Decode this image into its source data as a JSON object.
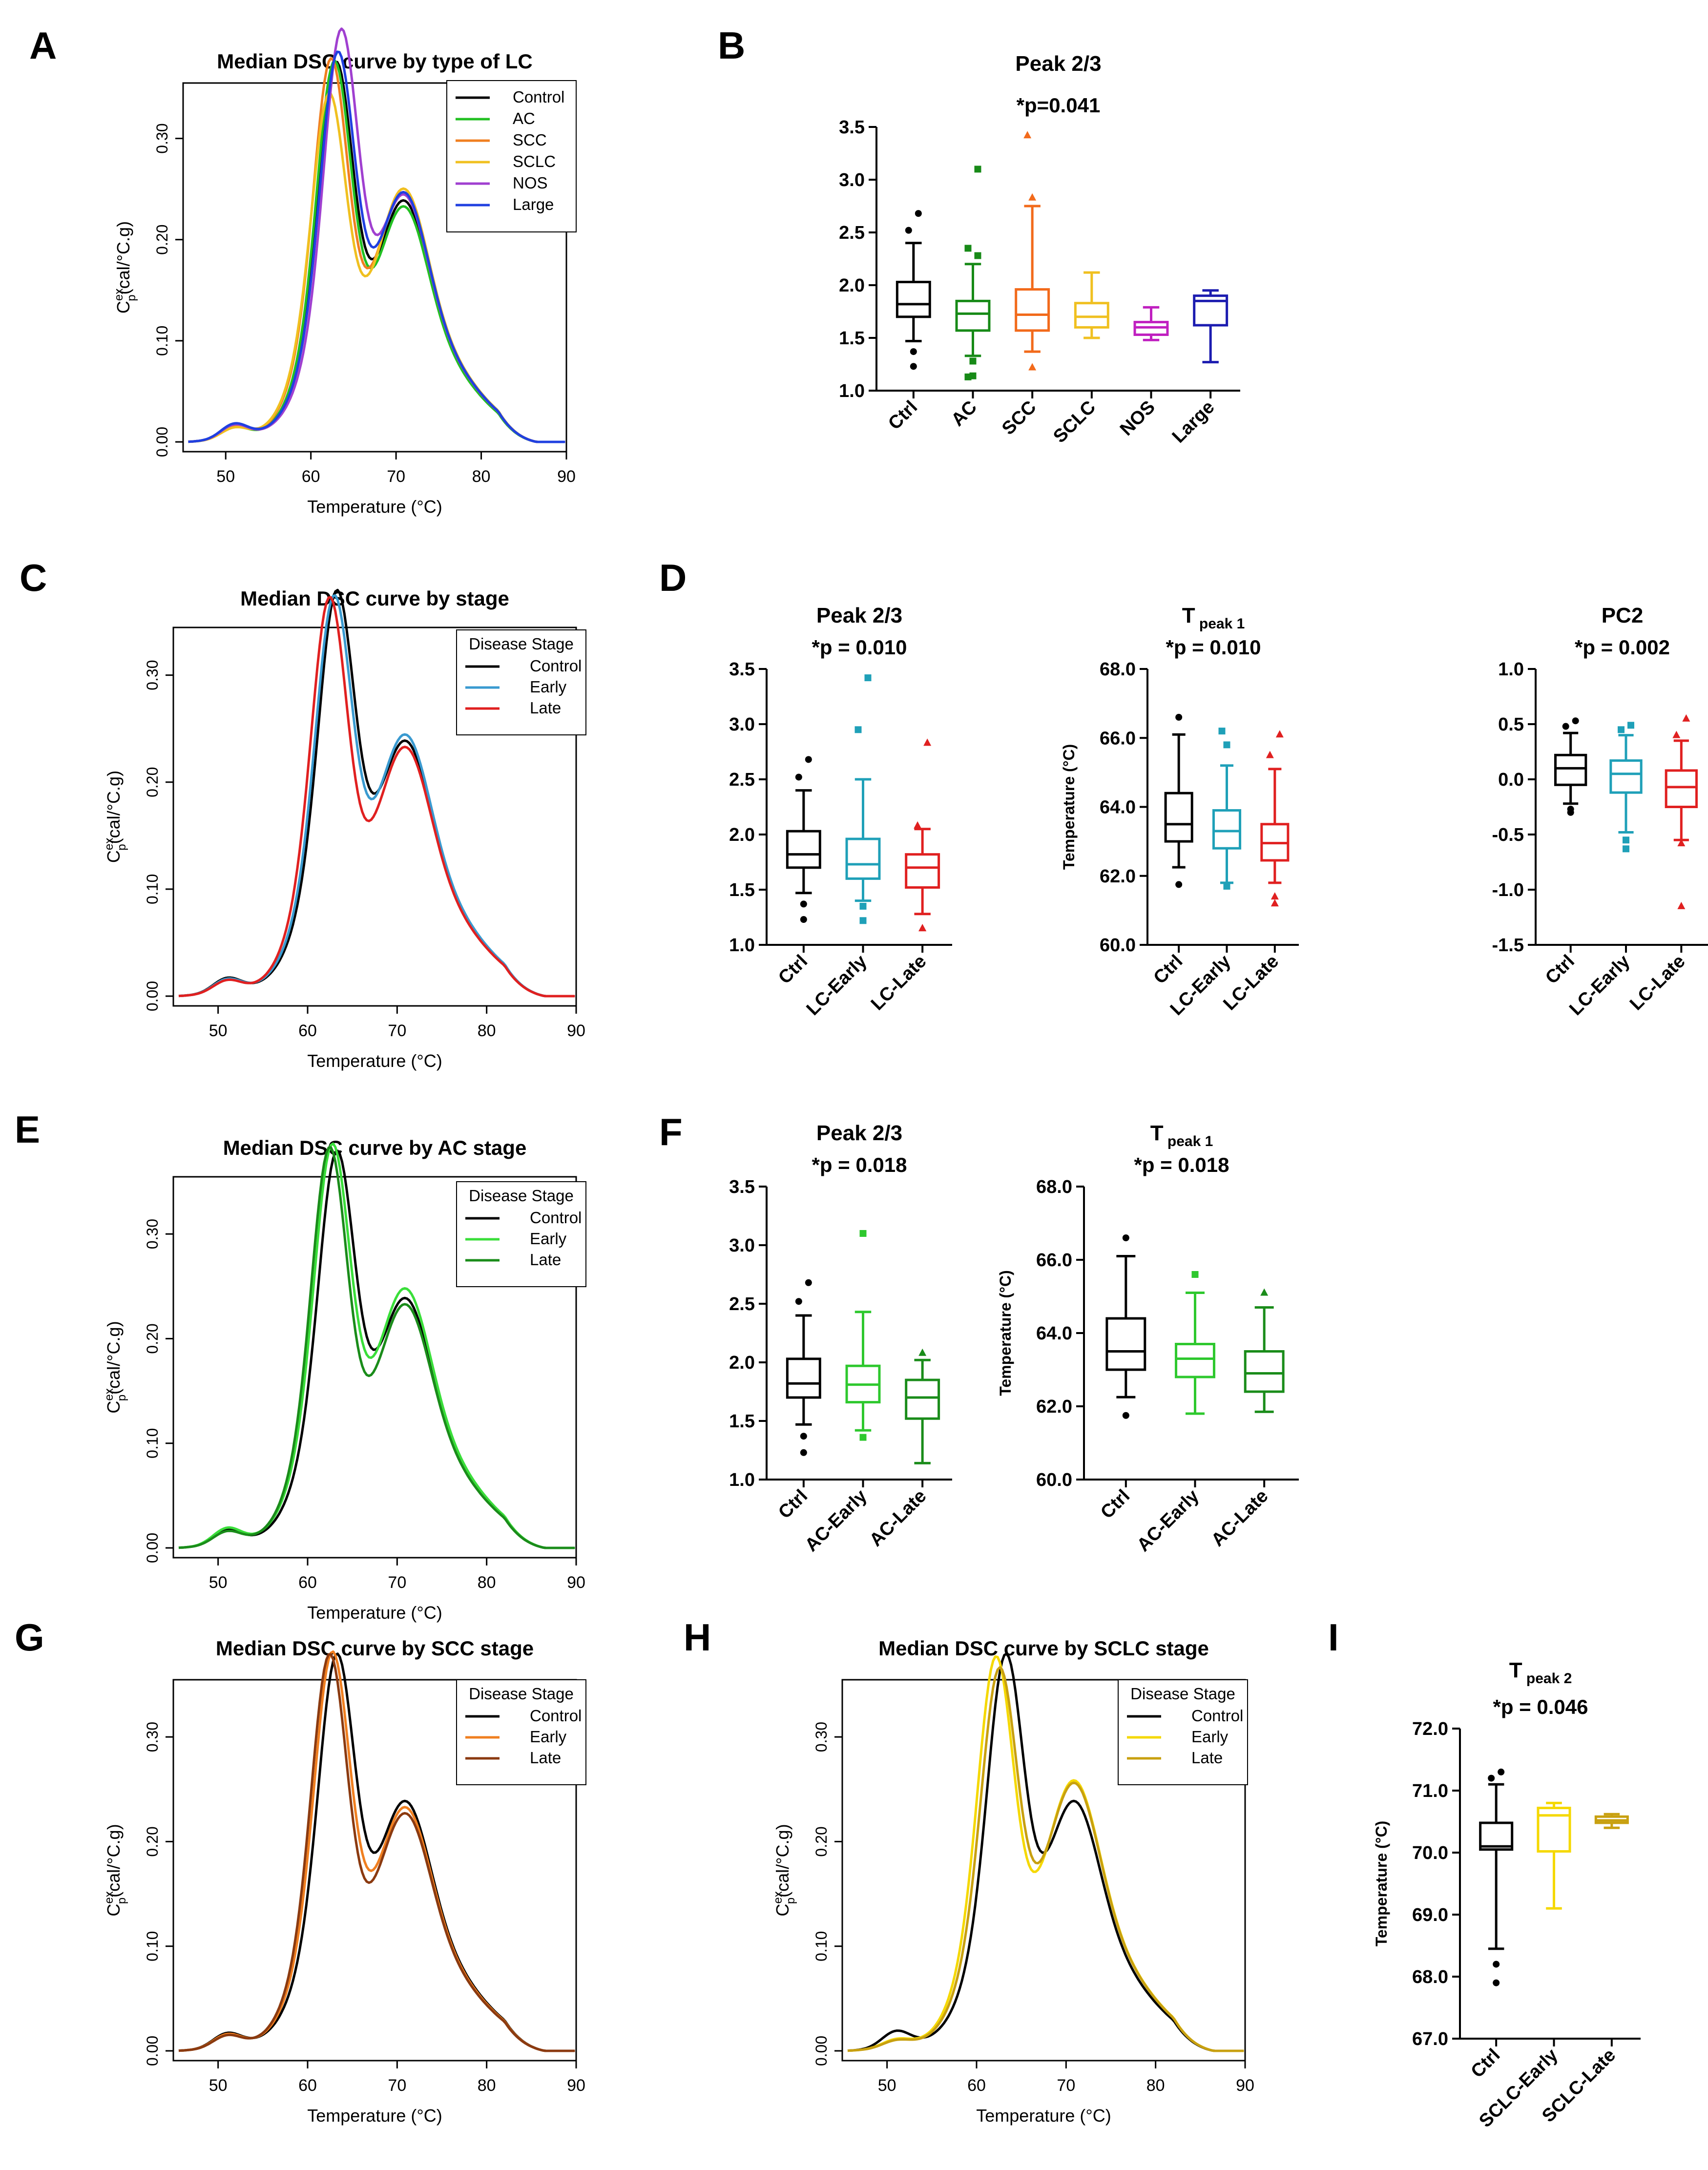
{
  "figure_title": "",
  "chart_data": [
    {
      "id": "A",
      "type": "line",
      "panel_label": "A",
      "title": "Median DSC curve by type of LC",
      "xlabel": "Temperature (°C)",
      "ylabel_main": "C",
      "ylabel_sup": "ex",
      "ylabel_sub": "p",
      "ylabel_tail": "(cal/°C.g)",
      "xlim": [
        45,
        90
      ],
      "ylim": [
        0,
        0.35
      ],
      "xticks": [
        50,
        60,
        70,
        80,
        90
      ],
      "yticks": [
        0.0,
        0.1,
        0.2,
        0.3
      ],
      "ytick_labels": [
        "0.00",
        "0.10",
        "0.20",
        "0.30"
      ],
      "legend_title": "",
      "series": [
        {
          "name": "Control",
          "color": "#000000",
          "profile": {
            "p1": 0.014,
            "p2": 0.325,
            "t2": 63.0,
            "p3": 0.205
          }
        },
        {
          "name": "AC",
          "color": "#22c022",
          "profile": {
            "p1": 0.012,
            "p2": 0.33,
            "t2": 62.8,
            "p3": 0.2
          }
        },
        {
          "name": "SCC",
          "color": "#f07f20",
          "profile": {
            "p1": 0.013,
            "p2": 0.332,
            "t2": 62.4,
            "p3": 0.215
          }
        },
        {
          "name": "SCLC",
          "color": "#f0c020",
          "profile": {
            "p1": 0.011,
            "p2": 0.3,
            "t2": 62.2,
            "p3": 0.215
          }
        },
        {
          "name": "NOS",
          "color": "#a040d0",
          "profile": {
            "p1": 0.014,
            "p2": 0.348,
            "t2": 63.6,
            "p3": 0.21
          }
        },
        {
          "name": "Large",
          "color": "#2040e0",
          "profile": {
            "p1": 0.015,
            "p2": 0.33,
            "t2": 63.2,
            "p3": 0.212
          }
        }
      ]
    },
    {
      "id": "B",
      "type": "box",
      "panel_label": "B",
      "title": "Peak 2/3",
      "annotation": "*p=0.041",
      "ylabel": "",
      "ylim": [
        1.0,
        3.5
      ],
      "yticks": [
        1.0,
        1.5,
        2.0,
        2.5,
        3.0,
        3.5
      ],
      "ytick_labels": [
        "1.0",
        "1.5",
        "2.0",
        "2.5",
        "3.0",
        "3.5"
      ],
      "categories": [
        "Ctrl",
        "AC",
        "SCC",
        "SCLC",
        "NOS",
        "Large"
      ],
      "groups": [
        {
          "name": "Ctrl",
          "color": "#000000",
          "marker": "circle",
          "whislo": 1.47,
          "q1": 1.7,
          "med": 1.82,
          "q3": 2.03,
          "whishi": 2.4,
          "outliers": [
            1.37,
            1.23,
            2.52,
            2.68
          ]
        },
        {
          "name": "AC",
          "color": "#178a17",
          "marker": "square",
          "whislo": 1.33,
          "q1": 1.57,
          "med": 1.73,
          "q3": 1.85,
          "whishi": 2.2,
          "outliers": [
            1.28,
            1.14,
            1.13,
            2.28,
            2.35,
            3.1
          ]
        },
        {
          "name": "SCC",
          "color": "#f26a1b",
          "marker": "triangle",
          "whislo": 1.37,
          "q1": 1.57,
          "med": 1.72,
          "q3": 1.96,
          "whishi": 2.75,
          "outliers": [
            1.22,
            2.83,
            3.42
          ]
        },
        {
          "name": "SCLC",
          "color": "#f0c020",
          "marker": "none",
          "whislo": 1.5,
          "q1": 1.6,
          "med": 1.7,
          "q3": 1.83,
          "whishi": 2.12,
          "outliers": []
        },
        {
          "name": "NOS",
          "color": "#c020c0",
          "marker": "none",
          "whislo": 1.48,
          "q1": 1.53,
          "med": 1.6,
          "q3": 1.65,
          "whishi": 1.79,
          "outliers": []
        },
        {
          "name": "Large",
          "color": "#1c1cb0",
          "marker": "none",
          "whislo": 1.27,
          "q1": 1.62,
          "med": 1.85,
          "q3": 1.9,
          "whishi": 1.95,
          "outliers": []
        }
      ]
    },
    {
      "id": "C",
      "type": "line",
      "panel_label": "C",
      "title": "Median DSC curve by stage",
      "xlabel": "Temperature (°C)",
      "ylabel_main": "C",
      "ylabel_sup": "ex",
      "ylabel_sub": "p",
      "ylabel_tail": "(cal/°C.g)",
      "xlim": [
        45,
        90
      ],
      "ylim": [
        0,
        0.34
      ],
      "xticks": [
        50,
        60,
        70,
        80,
        90
      ],
      "yticks": [
        0.0,
        0.1,
        0.2,
        0.3
      ],
      "ytick_labels": [
        "0.00",
        "0.10",
        "0.20",
        "0.30"
      ],
      "legend_title": "Disease Stage",
      "series": [
        {
          "name": "Control",
          "color": "#000000",
          "profile": {
            "p1": 0.014,
            "p2": 0.325,
            "t2": 63.3,
            "p3": 0.205
          }
        },
        {
          "name": "Early",
          "color": "#3a9ad0",
          "profile": {
            "p1": 0.013,
            "p2": 0.322,
            "t2": 63.0,
            "p3": 0.21
          }
        },
        {
          "name": "Late",
          "color": "#e02020",
          "profile": {
            "p1": 0.012,
            "p2": 0.33,
            "t2": 62.5,
            "p3": 0.2
          }
        }
      ]
    },
    {
      "id": "D1",
      "type": "box",
      "panel_label": "D",
      "title": "Peak 2/3",
      "annotation": "*p = 0.010",
      "ylabel": "",
      "ylim": [
        1.0,
        3.5
      ],
      "yticks": [
        1.0,
        1.5,
        2.0,
        2.5,
        3.0,
        3.5
      ],
      "ytick_labels": [
        "1.0",
        "1.5",
        "2.0",
        "2.5",
        "3.0",
        "3.5"
      ],
      "categories": [
        "Ctrl",
        "LC-Early",
        "LC-Late"
      ],
      "groups": [
        {
          "name": "Ctrl",
          "color": "#000000",
          "marker": "circle",
          "whislo": 1.47,
          "q1": 1.7,
          "med": 1.82,
          "q3": 2.03,
          "whishi": 2.4,
          "outliers": [
            1.37,
            1.23,
            2.52,
            2.68
          ]
        },
        {
          "name": "LC-Early",
          "color": "#1fa0b8",
          "marker": "square",
          "whislo": 1.4,
          "q1": 1.6,
          "med": 1.73,
          "q3": 1.96,
          "whishi": 2.5,
          "outliers": [
            1.35,
            1.22,
            2.95,
            3.42
          ]
        },
        {
          "name": "LC-Late",
          "color": "#e02020",
          "marker": "triangle",
          "whislo": 1.28,
          "q1": 1.52,
          "med": 1.7,
          "q3": 1.82,
          "whishi": 2.05,
          "outliers": [
            1.15,
            1.15,
            2.08,
            2.83
          ]
        }
      ]
    },
    {
      "id": "D2",
      "type": "box",
      "panel_label": "",
      "title": "T",
      "title_sub": "peak 1",
      "annotation": "*p = 0.010",
      "ylabel": "Temperature (°C)",
      "ylim": [
        60.0,
        68.0
      ],
      "yticks": [
        60.0,
        62.0,
        64.0,
        66.0,
        68.0
      ],
      "ytick_labels": [
        "60.0",
        "62.0",
        "64.0",
        "66.0",
        "68.0"
      ],
      "categories": [
        "Ctrl",
        "LC-Early",
        "LC-Late"
      ],
      "groups": [
        {
          "name": "Ctrl",
          "color": "#000000",
          "marker": "circle",
          "whislo": 62.25,
          "q1": 63.0,
          "med": 63.5,
          "q3": 64.4,
          "whishi": 66.1,
          "outliers": [
            61.75,
            66.6
          ]
        },
        {
          "name": "LC-Early",
          "color": "#1fa0b8",
          "marker": "square",
          "whislo": 61.8,
          "q1": 62.8,
          "med": 63.3,
          "q3": 63.9,
          "whishi": 65.2,
          "outliers": [
            61.7,
            65.8,
            66.2
          ]
        },
        {
          "name": "LC-Late",
          "color": "#e02020",
          "marker": "triangle",
          "whislo": 61.8,
          "q1": 62.45,
          "med": 62.95,
          "q3": 63.5,
          "whishi": 65.1,
          "outliers": [
            61.4,
            61.2,
            65.5,
            66.1
          ]
        }
      ]
    },
    {
      "id": "D3",
      "type": "box",
      "panel_label": "",
      "title": "PC2",
      "annotation": "*p = 0.002",
      "ylabel": "",
      "ylim": [
        -1.5,
        1.0
      ],
      "yticks": [
        -1.5,
        -1.0,
        -0.5,
        0.0,
        0.5,
        1.0
      ],
      "ytick_labels": [
        "-1.5",
        "-1.0",
        "-0.5",
        "0.0",
        "0.5",
        "1.0"
      ],
      "categories": [
        "Ctrl",
        "LC-Early",
        "LC-Late"
      ],
      "groups": [
        {
          "name": "Ctrl",
          "color": "#000000",
          "marker": "circle",
          "whislo": -0.22,
          "q1": -0.05,
          "med": 0.1,
          "q3": 0.22,
          "whishi": 0.42,
          "outliers": [
            -0.27,
            -0.3,
            0.48,
            0.53
          ]
        },
        {
          "name": "LC-Early",
          "color": "#1fa0b8",
          "marker": "square",
          "whislo": -0.48,
          "q1": -0.12,
          "med": 0.05,
          "q3": 0.17,
          "whishi": 0.4,
          "outliers": [
            -0.55,
            -0.63,
            0.45,
            0.49
          ]
        },
        {
          "name": "LC-Late",
          "color": "#e02020",
          "marker": "triangle",
          "whislo": -0.55,
          "q1": -0.25,
          "med": -0.07,
          "q3": 0.08,
          "whishi": 0.35,
          "outliers": [
            -0.58,
            -1.15,
            0.4,
            0.55
          ]
        }
      ]
    },
    {
      "id": "E",
      "type": "line",
      "panel_label": "E",
      "title": "Median DSC curve by  AC stage",
      "xlabel": "Temperature (°C)",
      "ylabel_main": "C",
      "ylabel_sup": "ex",
      "ylabel_sub": "p",
      "ylabel_tail": "(cal/°C.g)",
      "xlim": [
        45,
        90
      ],
      "ylim": [
        0,
        0.35
      ],
      "xticks": [
        50,
        60,
        70,
        80,
        90
      ],
      "yticks": [
        0.0,
        0.1,
        0.2,
        0.3
      ],
      "ytick_labels": [
        "0.00",
        "0.10",
        "0.20",
        "0.30"
      ],
      "legend_title": "Disease Stage",
      "series": [
        {
          "name": "Control",
          "color": "#000000",
          "profile": {
            "p1": 0.014,
            "p2": 0.325,
            "t2": 63.3,
            "p3": 0.205
          }
        },
        {
          "name": "Early",
          "color": "#3ade3a",
          "profile": {
            "p1": 0.016,
            "p2": 0.335,
            "t2": 62.8,
            "p3": 0.213
          }
        },
        {
          "name": "Late",
          "color": "#1a8c1a",
          "profile": {
            "p1": 0.013,
            "p2": 0.34,
            "t2": 62.5,
            "p3": 0.2
          }
        }
      ]
    },
    {
      "id": "F1",
      "type": "box",
      "panel_label": "F",
      "title": "Peak 2/3",
      "annotation": "*p = 0.018",
      "ylabel": "",
      "ylim": [
        1.0,
        3.5
      ],
      "yticks": [
        1.0,
        1.5,
        2.0,
        2.5,
        3.0,
        3.5
      ],
      "ytick_labels": [
        "1.0",
        "1.5",
        "2.0",
        "2.5",
        "3.0",
        "3.5"
      ],
      "categories": [
        "Ctrl",
        "AC-Early",
        "AC-Late"
      ],
      "groups": [
        {
          "name": "Ctrl",
          "color": "#000000",
          "marker": "circle",
          "whislo": 1.47,
          "q1": 1.7,
          "med": 1.82,
          "q3": 2.03,
          "whishi": 2.4,
          "outliers": [
            1.37,
            1.23,
            2.52,
            2.68
          ]
        },
        {
          "name": "AC-Early",
          "color": "#2ec82e",
          "marker": "square",
          "whislo": 1.42,
          "q1": 1.66,
          "med": 1.81,
          "q3": 1.97,
          "whishi": 2.43,
          "outliers": [
            1.36,
            3.1
          ]
        },
        {
          "name": "AC-Late",
          "color": "#1a8c1a",
          "marker": "triangle",
          "whislo": 1.14,
          "q1": 1.52,
          "med": 1.7,
          "q3": 1.85,
          "whishi": 2.02,
          "outliers": [
            2.08
          ]
        }
      ]
    },
    {
      "id": "F2",
      "type": "box",
      "panel_label": "",
      "title": "T",
      "title_sub": "peak 1",
      "annotation": "*p = 0.018",
      "ylabel": "Temperature (°C)",
      "ylim": [
        60.0,
        68.0
      ],
      "yticks": [
        60.0,
        62.0,
        64.0,
        66.0,
        68.0
      ],
      "ytick_labels": [
        "60.0",
        "62.0",
        "64.0",
        "66.0",
        "68.0"
      ],
      "categories": [
        "Ctrl",
        "AC-Early",
        "AC-Late"
      ],
      "groups": [
        {
          "name": "Ctrl",
          "color": "#000000",
          "marker": "circle",
          "whislo": 62.25,
          "q1": 63.0,
          "med": 63.5,
          "q3": 64.4,
          "whishi": 66.1,
          "outliers": [
            61.75,
            66.6
          ]
        },
        {
          "name": "AC-Early",
          "color": "#2ec82e",
          "marker": "square",
          "whislo": 61.8,
          "q1": 62.8,
          "med": 63.3,
          "q3": 63.7,
          "whishi": 65.1,
          "outliers": [
            65.6
          ]
        },
        {
          "name": "AC-Late",
          "color": "#1a8c1a",
          "marker": "triangle",
          "whislo": 61.85,
          "q1": 62.4,
          "med": 62.9,
          "q3": 63.5,
          "whishi": 64.7,
          "outliers": [
            65.1
          ]
        }
      ]
    },
    {
      "id": "G",
      "type": "line",
      "panel_label": "G",
      "title": "Median DSC curve by  SCC stage",
      "xlabel": "Temperature (°C)",
      "ylabel_main": "C",
      "ylabel_sup": "ex",
      "ylabel_sub": "p",
      "ylabel_tail": "(cal/°C.g)",
      "xlim": [
        45,
        90
      ],
      "ylim": [
        0,
        0.35
      ],
      "xticks": [
        50,
        60,
        70,
        80,
        90
      ],
      "yticks": [
        0.0,
        0.1,
        0.2,
        0.3
      ],
      "ytick_labels": [
        "0.00",
        "0.10",
        "0.20",
        "0.30"
      ],
      "legend_title": "Disease Stage",
      "series": [
        {
          "name": "Control",
          "color": "#000000",
          "profile": {
            "p1": 0.014,
            "p2": 0.325,
            "t2": 63.3,
            "p3": 0.205
          }
        },
        {
          "name": "Early",
          "color": "#f07f20",
          "profile": {
            "p1": 0.013,
            "p2": 0.335,
            "t2": 62.8,
            "p3": 0.2
          }
        },
        {
          "name": "Late",
          "color": "#8b3a10",
          "profile": {
            "p1": 0.012,
            "p2": 0.338,
            "t2": 62.5,
            "p3": 0.195
          }
        }
      ]
    },
    {
      "id": "H",
      "type": "line",
      "panel_label": "H",
      "title": "Median DSC curve by  SCLC stage",
      "xlabel": "Temperature (°C)",
      "ylabel_main": "C",
      "ylabel_sup": "ex",
      "ylabel_sub": "p",
      "ylabel_tail": "(cal/°C.g)",
      "xlim": [
        45,
        90
      ],
      "ylim": [
        0,
        0.35
      ],
      "xticks": [
        50,
        60,
        70,
        80,
        90
      ],
      "yticks": [
        0.0,
        0.1,
        0.2,
        0.3
      ],
      "ytick_labels": [
        "0.00",
        "0.10",
        "0.20",
        "0.30"
      ],
      "legend_title": "Disease Stage",
      "series": [
        {
          "name": "Control",
          "color": "#000000",
          "profile": {
            "p1": 0.016,
            "p2": 0.325,
            "t2": 63.3,
            "p3": 0.205
          }
        },
        {
          "name": "Early",
          "color": "#f5d800",
          "profile": {
            "p1": 0.008,
            "p2": 0.33,
            "t2": 62.2,
            "p3": 0.222
          }
        },
        {
          "name": "Late",
          "color": "#c8a010",
          "profile": {
            "p1": 0.007,
            "p2": 0.315,
            "t2": 62.6,
            "p3": 0.22
          }
        }
      ]
    },
    {
      "id": "I",
      "type": "box",
      "panel_label": "I",
      "title": "T",
      "title_sub": "peak 2",
      "annotation": "*p = 0.046",
      "ylabel": "Temperature (°C)",
      "ylim": [
        67.0,
        72.0
      ],
      "yticks": [
        67.0,
        68.0,
        69.0,
        70.0,
        71.0,
        72.0
      ],
      "ytick_labels": [
        "67.0",
        "68.0",
        "69.0",
        "70.0",
        "71.0",
        "72.0"
      ],
      "categories": [
        "Ctrl",
        "SCLC-Early",
        "SCLC-Late"
      ],
      "groups": [
        {
          "name": "Ctrl",
          "color": "#000000",
          "marker": "circle",
          "whislo": 68.45,
          "q1": 70.05,
          "med": 70.1,
          "q3": 70.48,
          "whishi": 71.1,
          "outliers": [
            68.2,
            67.9,
            71.2,
            71.3
          ]
        },
        {
          "name": "SCLC-Early",
          "color": "#f5d800",
          "marker": "none",
          "whislo": 69.1,
          "q1": 70.02,
          "med": 70.6,
          "q3": 70.72,
          "whishi": 70.8,
          "outliers": []
        },
        {
          "name": "SCLC-Late",
          "color": "#c8a010",
          "marker": "none",
          "whislo": 70.4,
          "q1": 70.48,
          "med": 70.52,
          "q3": 70.58,
          "whishi": 70.62,
          "outliers": []
        }
      ]
    }
  ]
}
